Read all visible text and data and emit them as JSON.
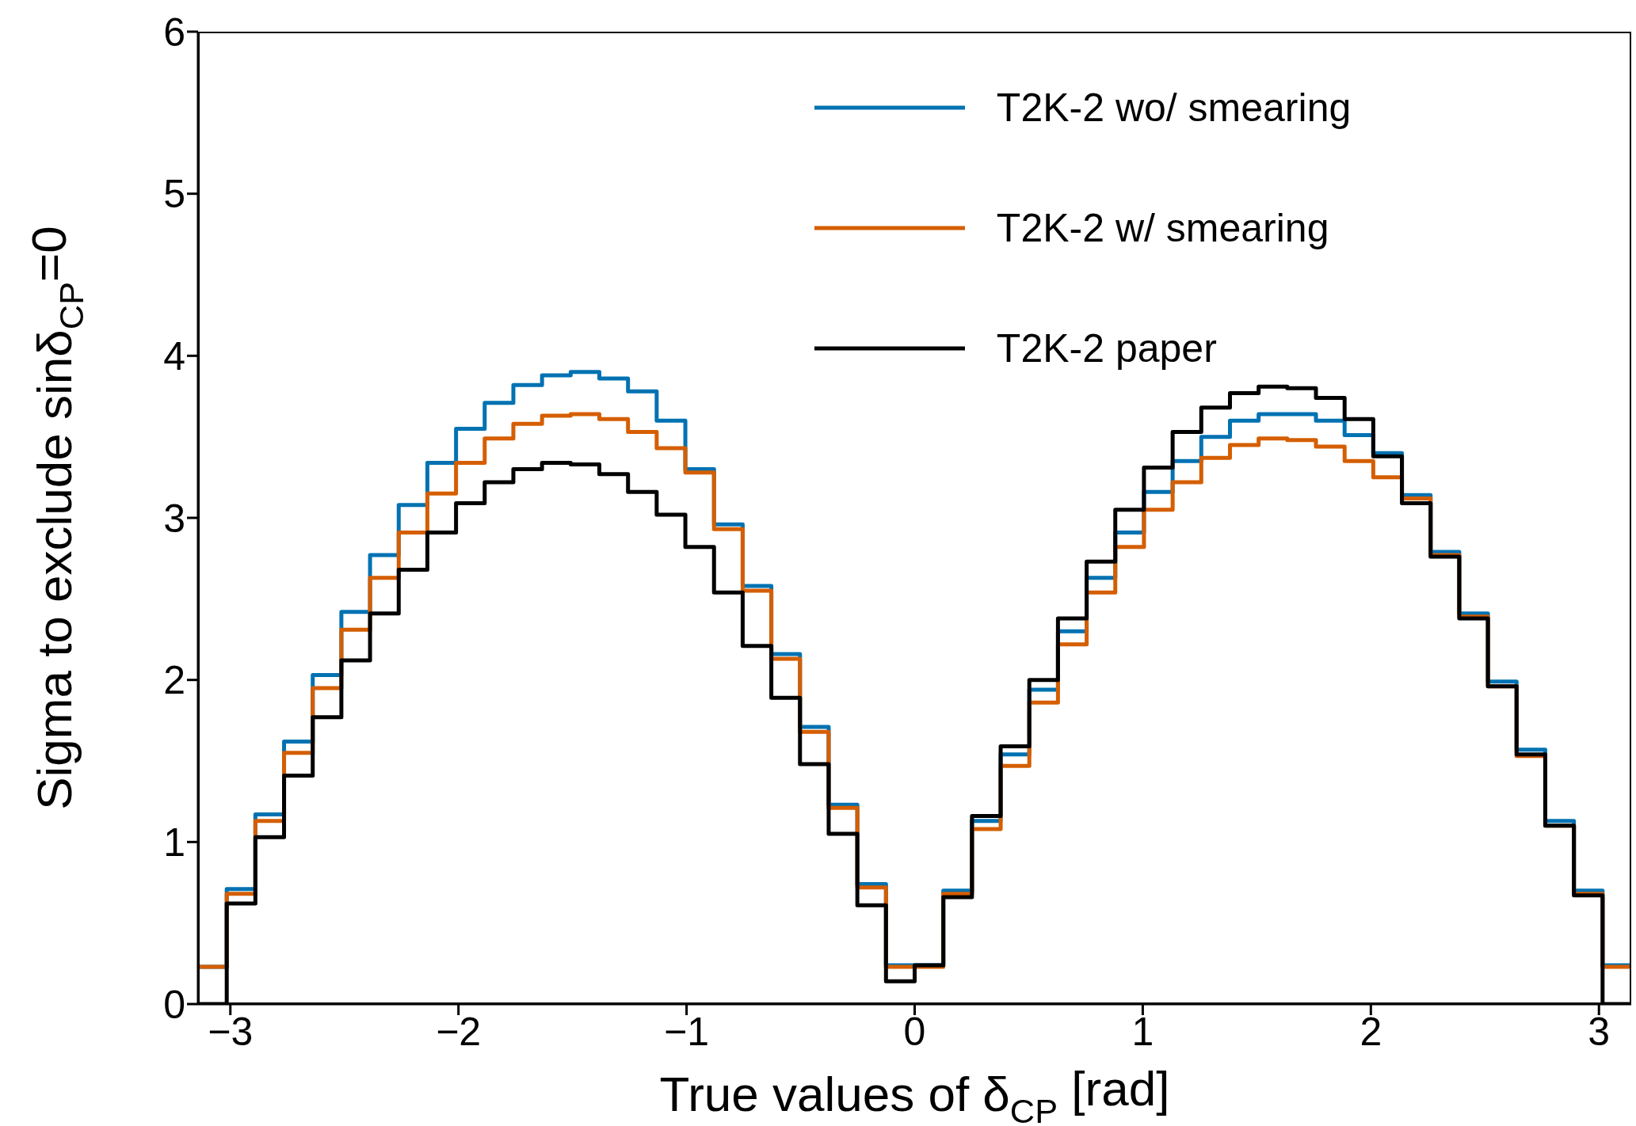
{
  "chart_data": {
    "type": "histogram",
    "xlabel": "True values of δ$_{CP}$ [rad]",
    "ylabel": "Sigma to exclude sinδ$_{CP}$=0",
    "bins": [
      -3.1416,
      -3.0159,
      -2.8903,
      -2.7646,
      -2.6389,
      -2.5133,
      -2.3876,
      -2.2619,
      -2.1363,
      -2.0106,
      -1.885,
      -1.7593,
      -1.6336,
      -1.508,
      -1.3823,
      -1.2566,
      -1.131,
      -1.0053,
      -0.8796,
      -0.754,
      -0.6283,
      -0.5027,
      -0.377,
      -0.2513,
      -0.1257,
      0,
      0.1257,
      0.2513,
      0.377,
      0.5027,
      0.6283,
      0.754,
      0.8796,
      1.0053,
      1.131,
      1.2566,
      1.3823,
      1.508,
      1.6336,
      1.7593,
      1.885,
      2.0106,
      2.1363,
      2.2619,
      2.3876,
      2.5133,
      2.6389,
      2.7646,
      2.8903,
      3.0159,
      3.1416
    ],
    "series": [
      {
        "name": "T2K-2 wo/ smearing",
        "color": "#0072b2",
        "values": [
          0.23,
          0.71,
          1.17,
          1.62,
          2.03,
          2.42,
          2.77,
          3.08,
          3.34,
          3.55,
          3.71,
          3.82,
          3.88,
          3.9,
          3.86,
          3.78,
          3.6,
          3.3,
          2.96,
          2.58,
          2.16,
          1.71,
          1.23,
          0.74,
          0.24,
          0.24,
          0.7,
          1.13,
          1.54,
          1.94,
          2.3,
          2.63,
          2.91,
          3.16,
          3.35,
          3.5,
          3.6,
          3.64,
          3.64,
          3.6,
          3.51,
          3.4,
          3.14,
          2.79,
          2.41,
          1.99,
          1.57,
          1.13,
          0.7,
          0.24
        ]
      },
      {
        "name": "T2K-2 w/ smearing",
        "color": "#d55e00",
        "values": [
          0.23,
          0.68,
          1.13,
          1.55,
          1.95,
          2.31,
          2.63,
          2.91,
          3.15,
          3.34,
          3.49,
          3.58,
          3.63,
          3.64,
          3.61,
          3.53,
          3.43,
          3.28,
          2.93,
          2.55,
          2.13,
          1.68,
          1.21,
          0.72,
          0.23,
          0.23,
          0.68,
          1.08,
          1.47,
          1.86,
          2.22,
          2.54,
          2.82,
          3.05,
          3.22,
          3.37,
          3.45,
          3.49,
          3.48,
          3.44,
          3.35,
          3.25,
          3.12,
          2.77,
          2.39,
          1.96,
          1.53,
          1.1,
          0.68,
          0.23
        ]
      },
      {
        "name": "T2K-2 paper",
        "color": "#000000",
        "values": [
          0,
          0.62,
          1.03,
          1.41,
          1.77,
          2.12,
          2.41,
          2.68,
          2.91,
          3.09,
          3.22,
          3.3,
          3.34,
          3.33,
          3.27,
          3.16,
          3.02,
          2.82,
          2.54,
          2.21,
          1.89,
          1.48,
          1.05,
          0.61,
          0.14,
          0.24,
          0.66,
          1.16,
          1.59,
          2,
          2.38,
          2.73,
          3.05,
          3.31,
          3.53,
          3.68,
          3.77,
          3.81,
          3.8,
          3.74,
          3.61,
          3.38,
          3.09,
          2.76,
          2.38,
          1.96,
          1.54,
          1.1,
          0.67,
          0
        ]
      }
    ],
    "xlim": [
      -3.1416,
      3.1416
    ],
    "xticks": [
      {
        "value": -3,
        "label": "−3"
      },
      {
        "value": -2,
        "label": "−2"
      },
      {
        "value": -1,
        "label": "−1"
      },
      0,
      1,
      2,
      3
    ],
    "ylim": [
      0,
      6
    ],
    "yticks": [
      0,
      1,
      2,
      3,
      4,
      5,
      6
    ],
    "legend": "top right",
    "grid": false,
    "line_style": "solid",
    "marker": "none"
  }
}
